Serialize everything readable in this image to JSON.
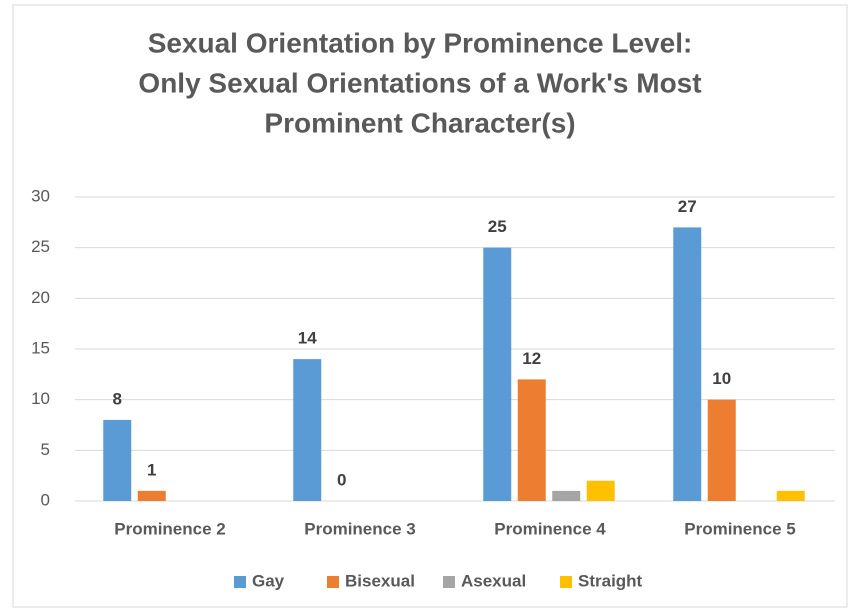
{
  "chart_data": {
    "type": "bar",
    "title": [
      "Sexual Orientation by Prominence Level:",
      "Only Sexual Orientations of a Work's Most",
      "Prominent Character(s)"
    ],
    "categories": [
      "Prominence 2",
      "Prominence 3",
      "Prominence 4",
      "Prominence 5"
    ],
    "series": [
      {
        "name": "Gay",
        "color": "#5b9bd5",
        "values": [
          8,
          14,
          25,
          27
        ],
        "data_labels": true
      },
      {
        "name": "Bisexual",
        "color": "#ed7d31",
        "values": [
          1,
          0,
          12,
          10
        ],
        "data_labels": true
      },
      {
        "name": "Asexual",
        "color": "#a5a5a5",
        "values": [
          null,
          null,
          1,
          null
        ],
        "data_labels": false
      },
      {
        "name": "Straight",
        "color": "#ffc000",
        "values": [
          null,
          null,
          2,
          1
        ],
        "data_labels": false
      }
    ],
    "ylim": [
      0,
      30
    ],
    "yticks": [
      0,
      5,
      10,
      15,
      20,
      25,
      30
    ],
    "grid": true,
    "legend": "bottom"
  }
}
